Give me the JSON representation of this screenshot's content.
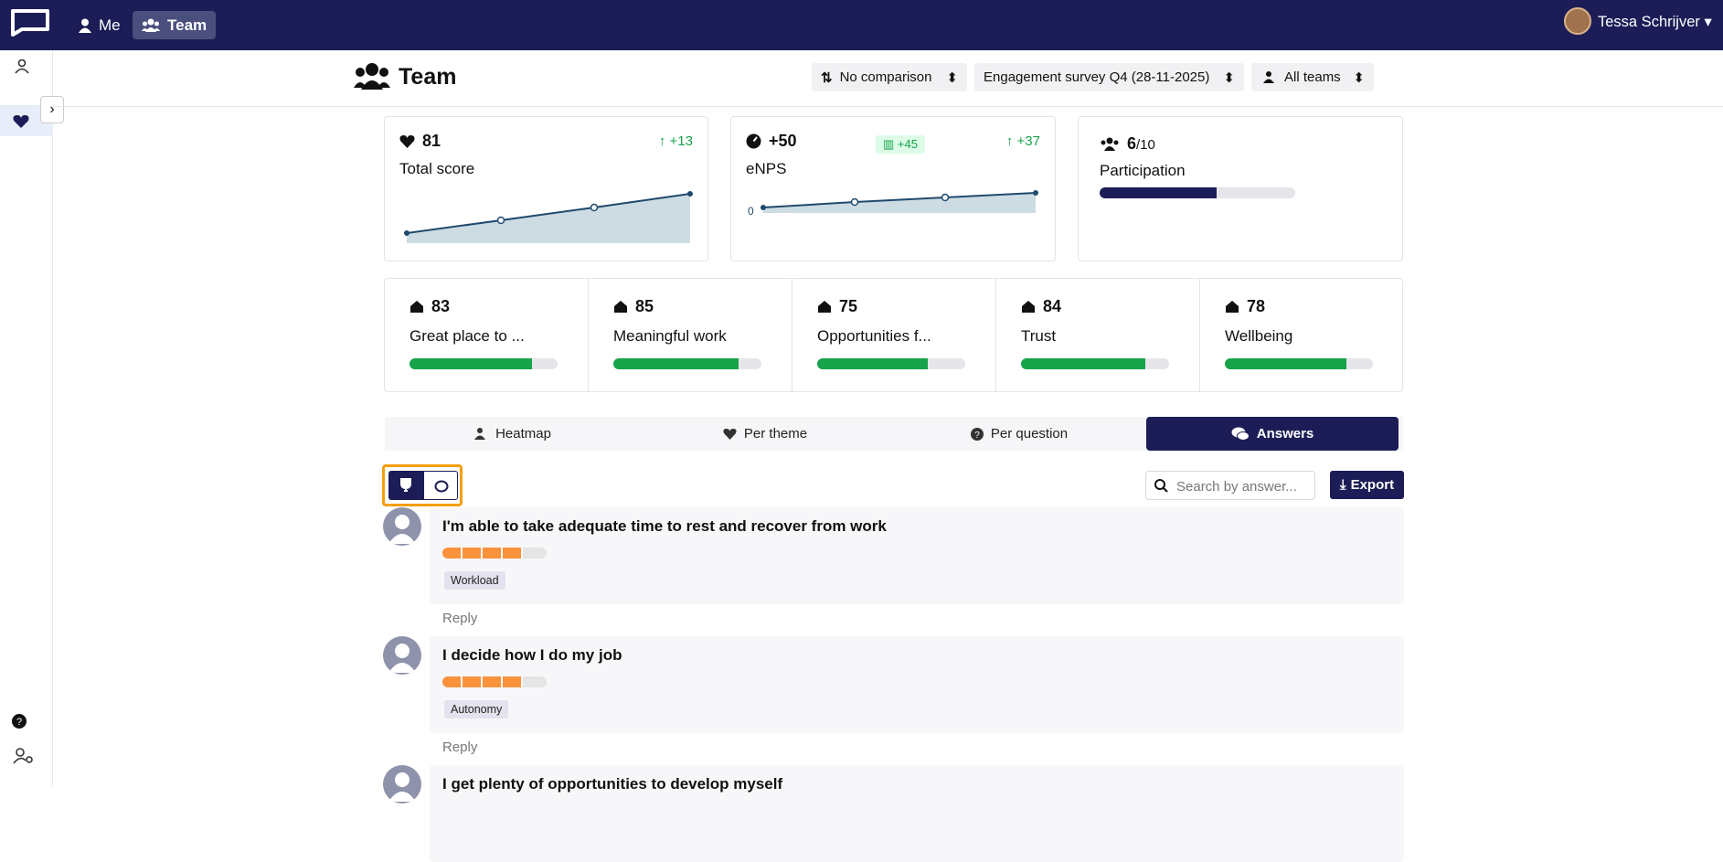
{
  "nav": {
    "items": [
      "Me",
      "Team"
    ],
    "user": "Tessa Schrijver"
  },
  "header": {
    "title": "Team",
    "filters": [
      "No comparison",
      "Engagement survey Q4 (28-11-2025)",
      "All teams"
    ]
  },
  "summary": [
    {
      "score": 81,
      "label": "Total score",
      "change": "+13"
    },
    {
      "score": "+50",
      "label": "eNPS",
      "benchmark": "+45",
      "change": "+37",
      "axis_label": 0
    },
    {
      "score": 6,
      "total": "/10",
      "label": "Participation"
    }
  ],
  "themes": [
    {
      "score": 83,
      "label": "Great place to ..."
    },
    {
      "score": 85,
      "label": "Meaningful work"
    },
    {
      "score": 75,
      "label": "Opportunities f..."
    },
    {
      "score": 84,
      "label": "Trust"
    },
    {
      "score": 78,
      "label": "Wellbeing"
    }
  ],
  "tabs": [
    "Heatmap",
    "Per theme",
    "Per question",
    "Answers"
  ],
  "search_placeholder": "Search by answer...",
  "export": "Export",
  "answers": [
    {
      "question": "I'm able to take adequate time to rest and recover from work",
      "tag": "Workload",
      "reply": "Reply"
    },
    {
      "question": "I decide how I do my job",
      "tag": "Autonomy",
      "reply": "Reply"
    },
    {
      "question": "I get plenty of opportunities to develop myself"
    }
  ]
}
